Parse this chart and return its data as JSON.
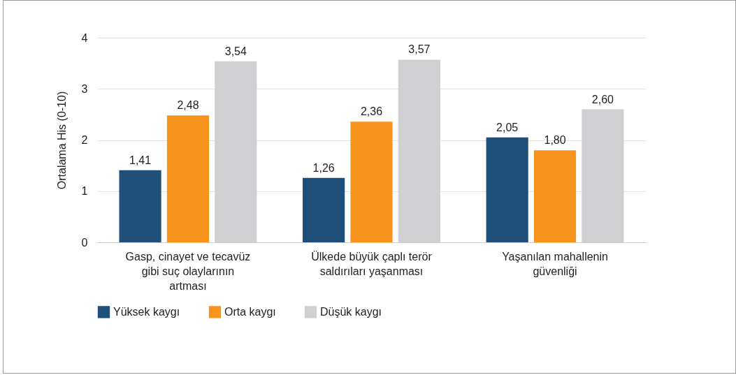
{
  "chart_data": {
    "type": "bar",
    "ylabel": "Ortalama His (0-10)",
    "categories": [
      "Gasp, cinayet ve tecavüz gibi suç olaylarının artması",
      "Ülkede büyük çaplı terör saldırıları yaşanması",
      "Yaşanılan mahallenin güvenliği"
    ],
    "series": [
      {
        "name": "Yüksek kaygı",
        "color": "#1f4e79",
        "values": [
          1.41,
          1.26,
          2.05
        ],
        "value_labels": [
          "1,41",
          "1,26",
          "2,05"
        ]
      },
      {
        "name": "Orta kaygı",
        "color": "#f7941d",
        "values": [
          2.48,
          2.36,
          1.8
        ],
        "value_labels": [
          "2,48",
          "2,36",
          "1,80"
        ]
      },
      {
        "name": "Düşük kaygı",
        "color": "#d0d0d2",
        "values": [
          3.54,
          3.57,
          2.6
        ],
        "value_labels": [
          "3,54",
          "3,57",
          "2,60"
        ]
      }
    ],
    "ylim": [
      0,
      4
    ],
    "yticks": [
      0,
      1,
      2,
      3,
      4
    ],
    "grid": "y",
    "legend": "bottom"
  }
}
